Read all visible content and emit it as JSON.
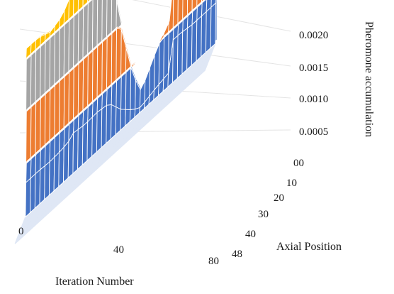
{
  "chart_data": {
    "type": "surface",
    "title": "",
    "xlabel": "Iteration Number",
    "ylabel": "Axial Position",
    "zlabel": "Pheromone accumulation",
    "x_ticks": [
      "0",
      "40",
      "80"
    ],
    "y_ticks": [
      "00",
      "10",
      "20",
      "30",
      "40",
      "48"
    ],
    "z_ticks": [
      "0.0005",
      "0.0010",
      "0.0015",
      "0.0020"
    ],
    "xlim": [
      0,
      80
    ],
    "ylim": [
      0,
      48
    ],
    "zlim": [
      0,
      0.002
    ],
    "band_colors": [
      "#4472c4",
      "#ed7d31",
      "#a5a5a5",
      "#ffc000"
    ],
    "grid": true,
    "profile_axial_0": {
      "iteration": [
        0,
        5,
        10,
        15,
        18,
        20,
        25,
        30,
        35,
        40,
        45,
        48,
        50,
        55,
        60,
        62,
        65,
        70,
        75,
        80
      ],
      "value": [
        0.0016,
        0.0016,
        0.00155,
        0.0016,
        0.0017,
        0.0019,
        0.0018,
        0.00185,
        0.00175,
        0.00095,
        0.0004,
        0.0002,
        0.00025,
        0.00045,
        0.0006,
        0.002,
        0.002,
        0.0019,
        0.0019,
        0.0019
      ]
    },
    "peak_regions_note_free": true
  }
}
